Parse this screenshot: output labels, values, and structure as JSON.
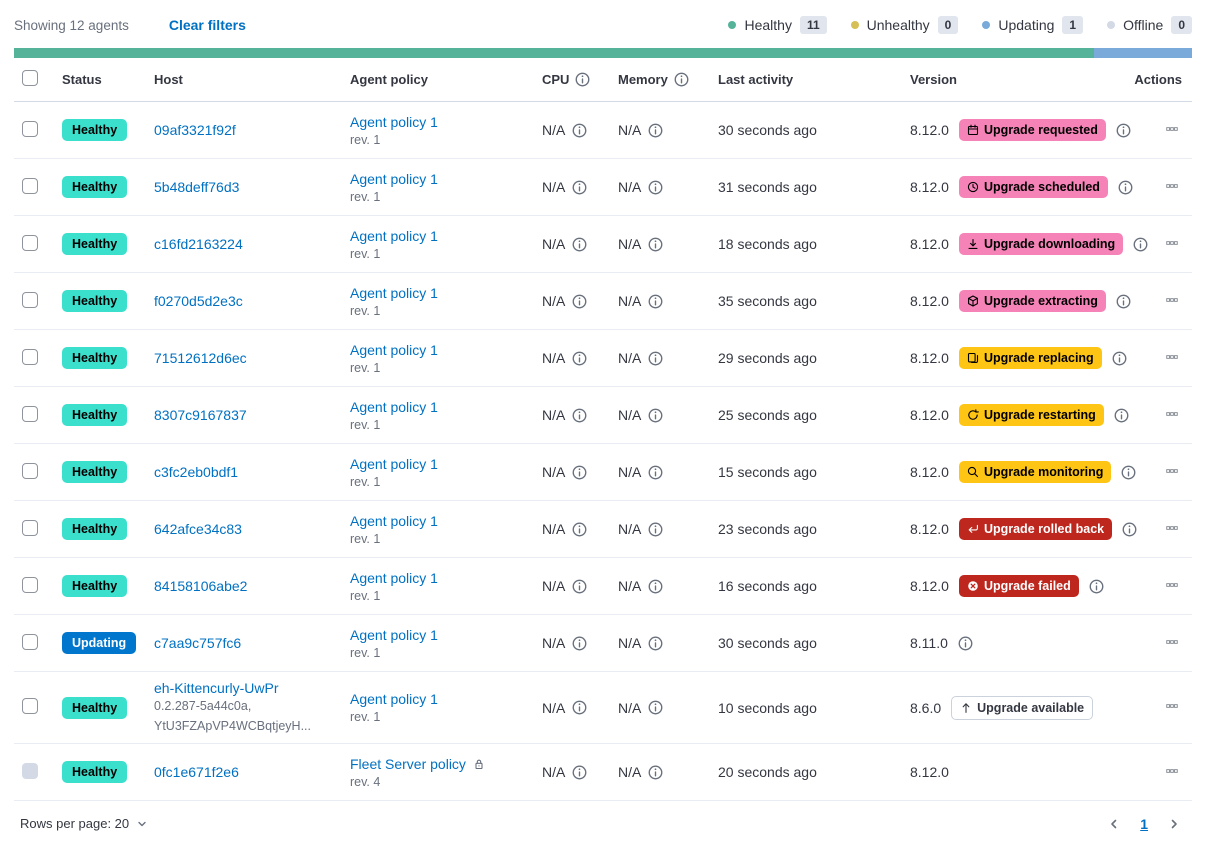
{
  "toolbar": {
    "showing_text": "Showing 12 agents",
    "clear_filters_label": "Clear filters",
    "legend": [
      {
        "label": "Healthy",
        "count": "11",
        "dot_color": "#54b399"
      },
      {
        "label": "Unhealthy",
        "count": "0",
        "dot_color": "#d6bf57"
      },
      {
        "label": "Updating",
        "count": "1",
        "dot_color": "#79aad9"
      },
      {
        "label": "Offline",
        "count": "0",
        "dot_color": "#d3dae6"
      }
    ]
  },
  "status_bar": {
    "segments": [
      {
        "name": "healthy",
        "color": "#54b399",
        "weight": 11
      },
      {
        "name": "updating",
        "color": "#79aad9",
        "weight": 1
      }
    ]
  },
  "table": {
    "headers": {
      "status": "Status",
      "host": "Host",
      "policy": "Agent policy",
      "cpu": "CPU",
      "memory": "Memory",
      "last_activity": "Last activity",
      "version": "Version",
      "actions": "Actions"
    },
    "agents": [
      {
        "status": {
          "label": "Healthy",
          "type": "healthy"
        },
        "host": {
          "name": "09af3321f92f",
          "sublines": []
        },
        "policy": {
          "name": "Agent policy 1",
          "rev": "rev. 1",
          "locked": false
        },
        "cpu": "N/A",
        "memory": "N/A",
        "last_activity": "30 seconds ago",
        "version": "8.12.0",
        "upgrade": {
          "label": "Upgrade requested",
          "icon": "calendar-icon",
          "type": "accent"
        },
        "version_info": true,
        "checkbox_disabled": false
      },
      {
        "status": {
          "label": "Healthy",
          "type": "healthy"
        },
        "host": {
          "name": "5b48deff76d3",
          "sublines": []
        },
        "policy": {
          "name": "Agent policy 1",
          "rev": "rev. 1",
          "locked": false
        },
        "cpu": "N/A",
        "memory": "N/A",
        "last_activity": "31 seconds ago",
        "version": "8.12.0",
        "upgrade": {
          "label": "Upgrade scheduled",
          "icon": "clock-icon",
          "type": "accent"
        },
        "version_info": true,
        "checkbox_disabled": false
      },
      {
        "status": {
          "label": "Healthy",
          "type": "healthy"
        },
        "host": {
          "name": "c16fd2163224",
          "sublines": []
        },
        "policy": {
          "name": "Agent policy 1",
          "rev": "rev. 1",
          "locked": false
        },
        "cpu": "N/A",
        "memory": "N/A",
        "last_activity": "18 seconds ago",
        "version": "8.12.0",
        "upgrade": {
          "label": "Upgrade downloading",
          "icon": "download-icon",
          "type": "accent"
        },
        "version_info": true,
        "checkbox_disabled": false
      },
      {
        "status": {
          "label": "Healthy",
          "type": "healthy"
        },
        "host": {
          "name": "f0270d5d2e3c",
          "sublines": []
        },
        "policy": {
          "name": "Agent policy 1",
          "rev": "rev. 1",
          "locked": false
        },
        "cpu": "N/A",
        "memory": "N/A",
        "last_activity": "35 seconds ago",
        "version": "8.12.0",
        "upgrade": {
          "label": "Upgrade extracting",
          "icon": "package-icon",
          "type": "accent"
        },
        "version_info": true,
        "checkbox_disabled": false
      },
      {
        "status": {
          "label": "Healthy",
          "type": "healthy"
        },
        "host": {
          "name": "71512612d6ec",
          "sublines": []
        },
        "policy": {
          "name": "Agent policy 1",
          "rev": "rev. 1",
          "locked": false
        },
        "cpu": "N/A",
        "memory": "N/A",
        "last_activity": "29 seconds ago",
        "version": "8.12.0",
        "upgrade": {
          "label": "Upgrade replacing",
          "icon": "copy-icon",
          "type": "warning"
        },
        "version_info": true,
        "checkbox_disabled": false
      },
      {
        "status": {
          "label": "Healthy",
          "type": "healthy"
        },
        "host": {
          "name": "8307c9167837",
          "sublines": []
        },
        "policy": {
          "name": "Agent policy 1",
          "rev": "rev. 1",
          "locked": false
        },
        "cpu": "N/A",
        "memory": "N/A",
        "last_activity": "25 seconds ago",
        "version": "8.12.0",
        "upgrade": {
          "label": "Upgrade restarting",
          "icon": "refresh-icon",
          "type": "warning"
        },
        "version_info": true,
        "checkbox_disabled": false
      },
      {
        "status": {
          "label": "Healthy",
          "type": "healthy"
        },
        "host": {
          "name": "c3fc2eb0bdf1",
          "sublines": []
        },
        "policy": {
          "name": "Agent policy 1",
          "rev": "rev. 1",
          "locked": false
        },
        "cpu": "N/A",
        "memory": "N/A",
        "last_activity": "15 seconds ago",
        "version": "8.12.0",
        "upgrade": {
          "label": "Upgrade monitoring",
          "icon": "inspect-icon",
          "type": "warning"
        },
        "version_info": true,
        "checkbox_disabled": false
      },
      {
        "status": {
          "label": "Healthy",
          "type": "healthy"
        },
        "host": {
          "name": "642afce34c83",
          "sublines": []
        },
        "policy": {
          "name": "Agent policy 1",
          "rev": "rev. 1",
          "locked": false
        },
        "cpu": "N/A",
        "memory": "N/A",
        "last_activity": "23 seconds ago",
        "version": "8.12.0",
        "upgrade": {
          "label": "Upgrade rolled back",
          "icon": "return-icon",
          "type": "danger"
        },
        "version_info": true,
        "checkbox_disabled": false
      },
      {
        "status": {
          "label": "Healthy",
          "type": "healthy"
        },
        "host": {
          "name": "84158106abe2",
          "sublines": []
        },
        "policy": {
          "name": "Agent policy 1",
          "rev": "rev. 1",
          "locked": false
        },
        "cpu": "N/A",
        "memory": "N/A",
        "last_activity": "16 seconds ago",
        "version": "8.12.0",
        "upgrade": {
          "label": "Upgrade failed",
          "icon": "x-circle-icon",
          "type": "danger"
        },
        "version_info": true,
        "checkbox_disabled": false
      },
      {
        "status": {
          "label": "Updating",
          "type": "updating"
        },
        "host": {
          "name": "c7aa9c757fc6",
          "sublines": []
        },
        "policy": {
          "name": "Agent policy 1",
          "rev": "rev. 1",
          "locked": false
        },
        "cpu": "N/A",
        "memory": "N/A",
        "last_activity": "30 seconds ago",
        "version": "8.11.0",
        "upgrade": null,
        "version_info": true,
        "checkbox_disabled": false
      },
      {
        "status": {
          "label": "Healthy",
          "type": "healthy"
        },
        "host": {
          "name": "eh-Kittencurly-UwPr",
          "sublines": [
            "0.2.287-5a44c0a,",
            "YtU3FZApVP4WCBqtjeyH..."
          ]
        },
        "policy": {
          "name": "Agent policy 1",
          "rev": "rev. 1",
          "locked": false
        },
        "cpu": "N/A",
        "memory": "N/A",
        "last_activity": "10 seconds ago",
        "version": "8.6.0",
        "upgrade": {
          "label": "Upgrade available",
          "icon": "arrow-up-icon",
          "type": "hollow"
        },
        "version_info": false,
        "checkbox_disabled": false
      },
      {
        "status": {
          "label": "Healthy",
          "type": "healthy"
        },
        "host": {
          "name": "0fc1e671f2e6",
          "sublines": []
        },
        "policy": {
          "name": "Fleet Server policy",
          "rev": "rev. 4",
          "locked": true
        },
        "cpu": "N/A",
        "memory": "N/A",
        "last_activity": "20 seconds ago",
        "version": "8.12.0",
        "upgrade": null,
        "version_info": false,
        "checkbox_disabled": true
      }
    ]
  },
  "footer": {
    "rows_per_page_label": "Rows per page: 20",
    "current_page": "1"
  },
  "colors": {
    "link": "#0071c2",
    "healthy_badge": "#3be0cd",
    "updating_badge": "#0077cc",
    "accent_badge": "#f583b7",
    "warning_badge": "#fec514",
    "danger_badge": "#bd271e",
    "bar_green": "#54b399",
    "bar_blue": "#79aad9"
  }
}
